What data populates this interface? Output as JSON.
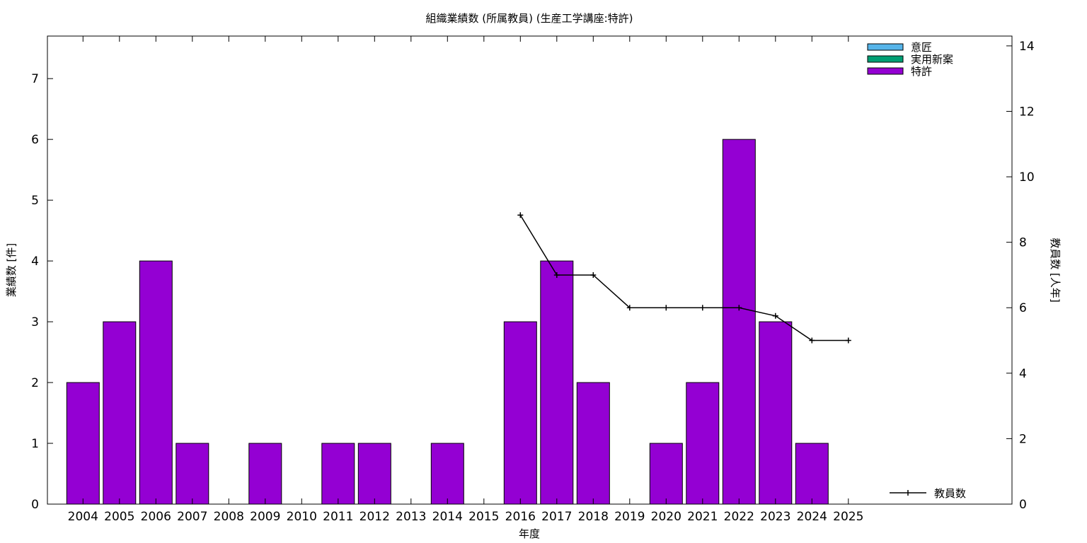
{
  "chart_data": {
    "type": "bar",
    "title": "組織業績数 (所属教員) (生産工学講座:特許)",
    "xlabel": "年度",
    "ylabel": "業績数 [件]",
    "y2label": "教員数 [人年]",
    "categories": [
      "2004",
      "2005",
      "2006",
      "2007",
      "2008",
      "2009",
      "2010",
      "2011",
      "2012",
      "2013",
      "2014",
      "2015",
      "2016",
      "2017",
      "2018",
      "2019",
      "2020",
      "2021",
      "2022",
      "2023",
      "2024",
      "2025"
    ],
    "ylim": [
      0,
      7.7
    ],
    "y_ticks": [
      0,
      1,
      2,
      3,
      4,
      5,
      6,
      7
    ],
    "y2lim": [
      0,
      14.3
    ],
    "y2_ticks": [
      0,
      2,
      4,
      6,
      8,
      10,
      12,
      14
    ],
    "series": [
      {
        "name": "意匠",
        "color": "#56b4e9",
        "values": [
          0,
          0,
          0,
          0,
          0,
          0,
          0,
          0,
          0,
          0,
          0,
          0,
          0,
          0,
          0,
          0,
          0,
          0,
          0,
          0,
          0,
          0
        ]
      },
      {
        "name": "実用新案",
        "color": "#009e73",
        "values": [
          0,
          0,
          0,
          0,
          0,
          0,
          0,
          0,
          0,
          0,
          0,
          0,
          0,
          0,
          0,
          0,
          0,
          0,
          0,
          0,
          0,
          0
        ]
      },
      {
        "name": "特許",
        "color": "#9400d3",
        "values": [
          2,
          3,
          4,
          1,
          0,
          1,
          0,
          1,
          1,
          0,
          1,
          0,
          3,
          4,
          2,
          0,
          1,
          2,
          6,
          3,
          1,
          0
        ]
      }
    ],
    "line_series": {
      "name": "教員数",
      "axis": "y2",
      "color": "#000000",
      "x": [
        "2016",
        "2017",
        "2018",
        "2019",
        "2020",
        "2021",
        "2022",
        "2023",
        "2024",
        "2025"
      ],
      "values": [
        8.83,
        7.0,
        7.0,
        6.0,
        6.0,
        6.0,
        6.0,
        5.75,
        5.0,
        5.0
      ]
    },
    "legend_placement": "top-right",
    "line_legend_placement": "bottom-right",
    "grid": false
  }
}
